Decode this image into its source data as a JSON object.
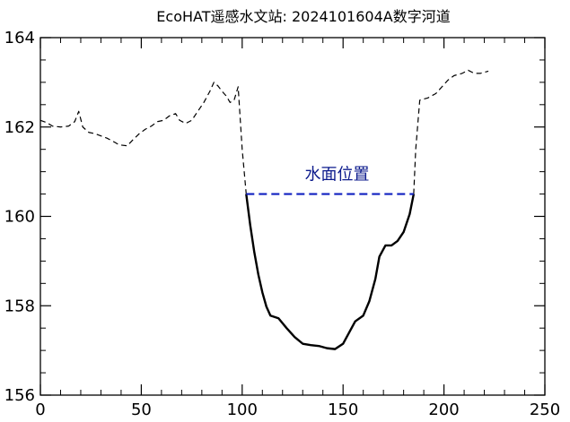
{
  "chart_data": {
    "type": "line",
    "title": "EcoHAT遥感水文站: 2024101604A数字河道",
    "xlabel": "",
    "ylabel": "",
    "xlim": [
      0,
      250
    ],
    "ylim": [
      156,
      164
    ],
    "x_ticks": [
      0,
      50,
      100,
      150,
      200,
      250
    ],
    "y_ticks": [
      156,
      158,
      160,
      162,
      164
    ],
    "x_minor_step": 10,
    "y_minor_step": 0.5,
    "grid": false,
    "series": [
      {
        "style": "dashed",
        "color": "#000000",
        "points": [
          [
            0,
            162.15
          ],
          [
            3,
            162.1
          ],
          [
            6,
            162.02
          ],
          [
            10,
            162.0
          ],
          [
            14,
            162.02
          ],
          [
            17,
            162.12
          ],
          [
            19,
            162.35
          ],
          [
            21,
            162.0
          ],
          [
            24,
            161.88
          ],
          [
            27,
            161.85
          ],
          [
            30,
            161.8
          ],
          [
            33,
            161.75
          ],
          [
            36,
            161.68
          ],
          [
            39,
            161.6
          ],
          [
            43,
            161.58
          ],
          [
            46,
            161.72
          ],
          [
            49,
            161.85
          ],
          [
            52,
            161.95
          ],
          [
            55,
            162.02
          ],
          [
            58,
            162.12
          ],
          [
            61,
            162.15
          ],
          [
            64,
            162.25
          ],
          [
            67,
            162.3
          ],
          [
            69,
            162.15
          ],
          [
            72,
            162.08
          ],
          [
            75,
            162.15
          ],
          [
            78,
            162.35
          ],
          [
            81,
            162.55
          ],
          [
            84,
            162.8
          ],
          [
            86,
            163.0
          ],
          [
            88,
            162.92
          ],
          [
            90,
            162.8
          ],
          [
            92,
            162.7
          ],
          [
            94,
            162.55
          ],
          [
            96,
            162.6
          ],
          [
            98,
            162.9
          ],
          [
            100,
            161.5
          ],
          [
            102,
            160.5
          ]
        ]
      },
      {
        "style": "solid",
        "color": "#000000",
        "points": [
          [
            102,
            160.5
          ],
          [
            104,
            159.8
          ],
          [
            106,
            159.2
          ],
          [
            108,
            158.7
          ],
          [
            110,
            158.3
          ],
          [
            112,
            157.98
          ],
          [
            114,
            157.78
          ],
          [
            118,
            157.72
          ],
          [
            122,
            157.5
          ],
          [
            126,
            157.3
          ],
          [
            130,
            157.15
          ],
          [
            134,
            157.12
          ],
          [
            138,
            157.1
          ],
          [
            142,
            157.05
          ],
          [
            146,
            157.03
          ],
          [
            150,
            157.15
          ],
          [
            153,
            157.4
          ],
          [
            156,
            157.65
          ],
          [
            160,
            157.78
          ],
          [
            163,
            158.1
          ],
          [
            166,
            158.6
          ],
          [
            168,
            159.1
          ],
          [
            171,
            159.35
          ],
          [
            174,
            159.35
          ],
          [
            177,
            159.45
          ],
          [
            180,
            159.65
          ],
          [
            183,
            160.05
          ],
          [
            185,
            160.5
          ]
        ]
      },
      {
        "style": "dashed",
        "color": "#000000",
        "points": [
          [
            185,
            160.5
          ],
          [
            186,
            161.5
          ],
          [
            188,
            162.6
          ],
          [
            192,
            162.65
          ],
          [
            196,
            162.75
          ],
          [
            199,
            162.9
          ],
          [
            202,
            163.05
          ],
          [
            205,
            163.15
          ],
          [
            209,
            163.2
          ],
          [
            212,
            163.27
          ],
          [
            215,
            163.2
          ],
          [
            218,
            163.2
          ],
          [
            222,
            163.25
          ]
        ]
      },
      {
        "name": "水面位置",
        "style": "dashed",
        "color": "#1020c0",
        "points": [
          [
            102,
            160.5
          ],
          [
            185,
            160.5
          ]
        ]
      }
    ],
    "annotations": [
      {
        "text": "水面位置",
        "x": 147,
        "y": 160.7,
        "color": "#0b1a8c"
      }
    ]
  }
}
